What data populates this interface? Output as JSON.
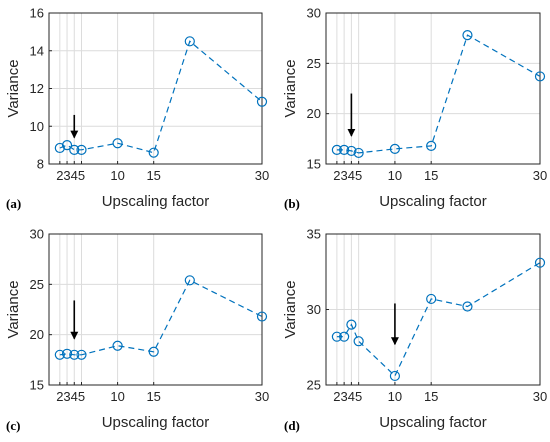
{
  "colors": {
    "series": "#0072BD",
    "grid": "#dcdcdc",
    "axis": "#262626",
    "arrow": "#000000"
  },
  "chart_data": [
    {
      "type": "line",
      "panel_label": "(a)",
      "xlabel": "Upscaling factor",
      "ylabel": "Variance",
      "x_ticks": [
        2,
        3,
        4,
        5,
        10,
        15,
        30
      ],
      "x_tick_labels": [
        "2",
        "3",
        "4",
        "5",
        "10",
        "15",
        "30"
      ],
      "xlim": [
        0.5,
        30
      ],
      "ylim": [
        8,
        16
      ],
      "y_ticks": [
        8,
        10,
        12,
        14,
        16
      ],
      "grid": true,
      "series": [
        {
          "x": [
            2,
            3,
            4,
            5,
            10,
            15,
            20,
            30
          ],
          "y": [
            8.85,
            9.0,
            8.75,
            8.75,
            9.1,
            8.6,
            14.5,
            11.3
          ]
        }
      ],
      "arrow_at": {
        "x": 4,
        "y_from": 10.6,
        "y_to": 9.4
      }
    },
    {
      "type": "line",
      "panel_label": "(b)",
      "xlabel": "Upscaling factor",
      "ylabel": "Variance",
      "x_ticks": [
        2,
        3,
        4,
        5,
        10,
        15,
        30
      ],
      "x_tick_labels": [
        "2",
        "3",
        "4",
        "5",
        "10",
        "15",
        "30"
      ],
      "xlim": [
        0.5,
        30
      ],
      "ylim": [
        15,
        30
      ],
      "y_ticks": [
        15,
        20,
        25,
        30
      ],
      "grid": true,
      "series": [
        {
          "x": [
            2,
            3,
            4,
            5,
            10,
            15,
            20,
            30
          ],
          "y": [
            16.4,
            16.4,
            16.3,
            16.1,
            16.5,
            16.8,
            27.8,
            23.7
          ]
        }
      ],
      "arrow_at": {
        "x": 4,
        "y_from": 22.0,
        "y_to": 17.8
      }
    },
    {
      "type": "line",
      "panel_label": "(c)",
      "xlabel": "Upscaling factor",
      "ylabel": "Variance",
      "x_ticks": [
        2,
        3,
        4,
        5,
        10,
        15,
        30
      ],
      "x_tick_labels": [
        "2",
        "3",
        "4",
        "5",
        "10",
        "15",
        "30"
      ],
      "xlim": [
        0.5,
        30
      ],
      "ylim": [
        15,
        30
      ],
      "y_ticks": [
        15,
        20,
        25,
        30
      ],
      "grid": true,
      "series": [
        {
          "x": [
            2,
            3,
            4,
            5,
            10,
            15,
            20,
            30
          ],
          "y": [
            18.0,
            18.1,
            18.0,
            18.0,
            18.9,
            18.3,
            25.4,
            21.8
          ]
        }
      ],
      "arrow_at": {
        "x": 4,
        "y_from": 23.4,
        "y_to": 19.6
      }
    },
    {
      "type": "line",
      "panel_label": "(d)",
      "xlabel": "Upscaling factor",
      "ylabel": "Variance",
      "x_ticks": [
        2,
        3,
        4,
        5,
        10,
        15,
        30
      ],
      "x_tick_labels": [
        "2",
        "3",
        "4",
        "5",
        "10",
        "15",
        "30"
      ],
      "xlim": [
        0.5,
        30
      ],
      "ylim": [
        25,
        35
      ],
      "y_ticks": [
        25,
        30,
        35
      ],
      "grid": true,
      "series": [
        {
          "x": [
            2,
            3,
            4,
            5,
            10,
            15,
            20,
            30
          ],
          "y": [
            28.2,
            28.2,
            29.0,
            27.9,
            25.6,
            30.7,
            30.2,
            33.1
          ]
        }
      ],
      "arrow_at": {
        "x": 10,
        "y_from": 30.4,
        "y_to": 27.7
      }
    }
  ]
}
